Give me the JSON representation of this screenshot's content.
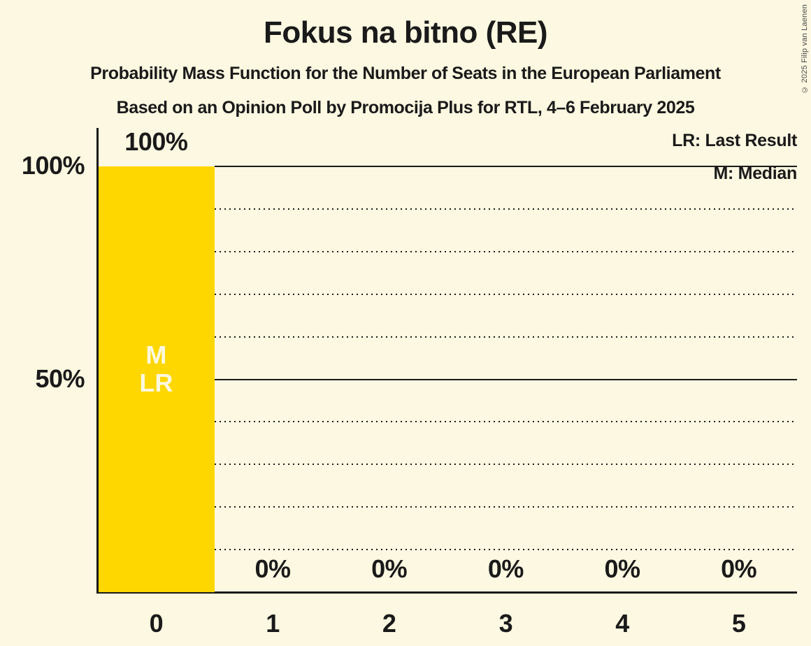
{
  "title": "Fokus na bitno (RE)",
  "subtitles": [
    "Probability Mass Function for the Number of Seats in the European Parliament",
    "Based on an Opinion Poll by Promocija Plus for RTL, 4–6 February 2025"
  ],
  "copyright": "© 2025 Filip van Laenen",
  "legend": {
    "last_result": "LR: Last Result",
    "median": "M: Median"
  },
  "colors": {
    "background": "#FCF8E1",
    "bar": "#FFD700",
    "text": "#1A1A1A",
    "bar_text": "#FCF8E1"
  },
  "chart_data": {
    "type": "bar",
    "title": "Fokus na bitno (RE)",
    "categories": [
      "0",
      "1",
      "2",
      "3",
      "4",
      "5"
    ],
    "values": [
      100,
      0,
      0,
      0,
      0,
      0
    ],
    "value_labels": [
      "100%",
      "0%",
      "0%",
      "0%",
      "0%",
      "0%"
    ],
    "y_axis_labels": [
      {
        "text": "100%",
        "value": 100
      },
      {
        "text": "50%",
        "value": 50
      }
    ],
    "ylim": [
      0,
      100
    ],
    "solid_gridlines": [
      100,
      50
    ],
    "dotted_gridlines": [
      90,
      80,
      70,
      60,
      40,
      30,
      20,
      10
    ],
    "bar_annotations": [
      {
        "category": "0",
        "lines": [
          "M",
          "LR"
        ]
      }
    ],
    "legend_position": "top-right",
    "grid": "horizontal-every-10pct"
  }
}
